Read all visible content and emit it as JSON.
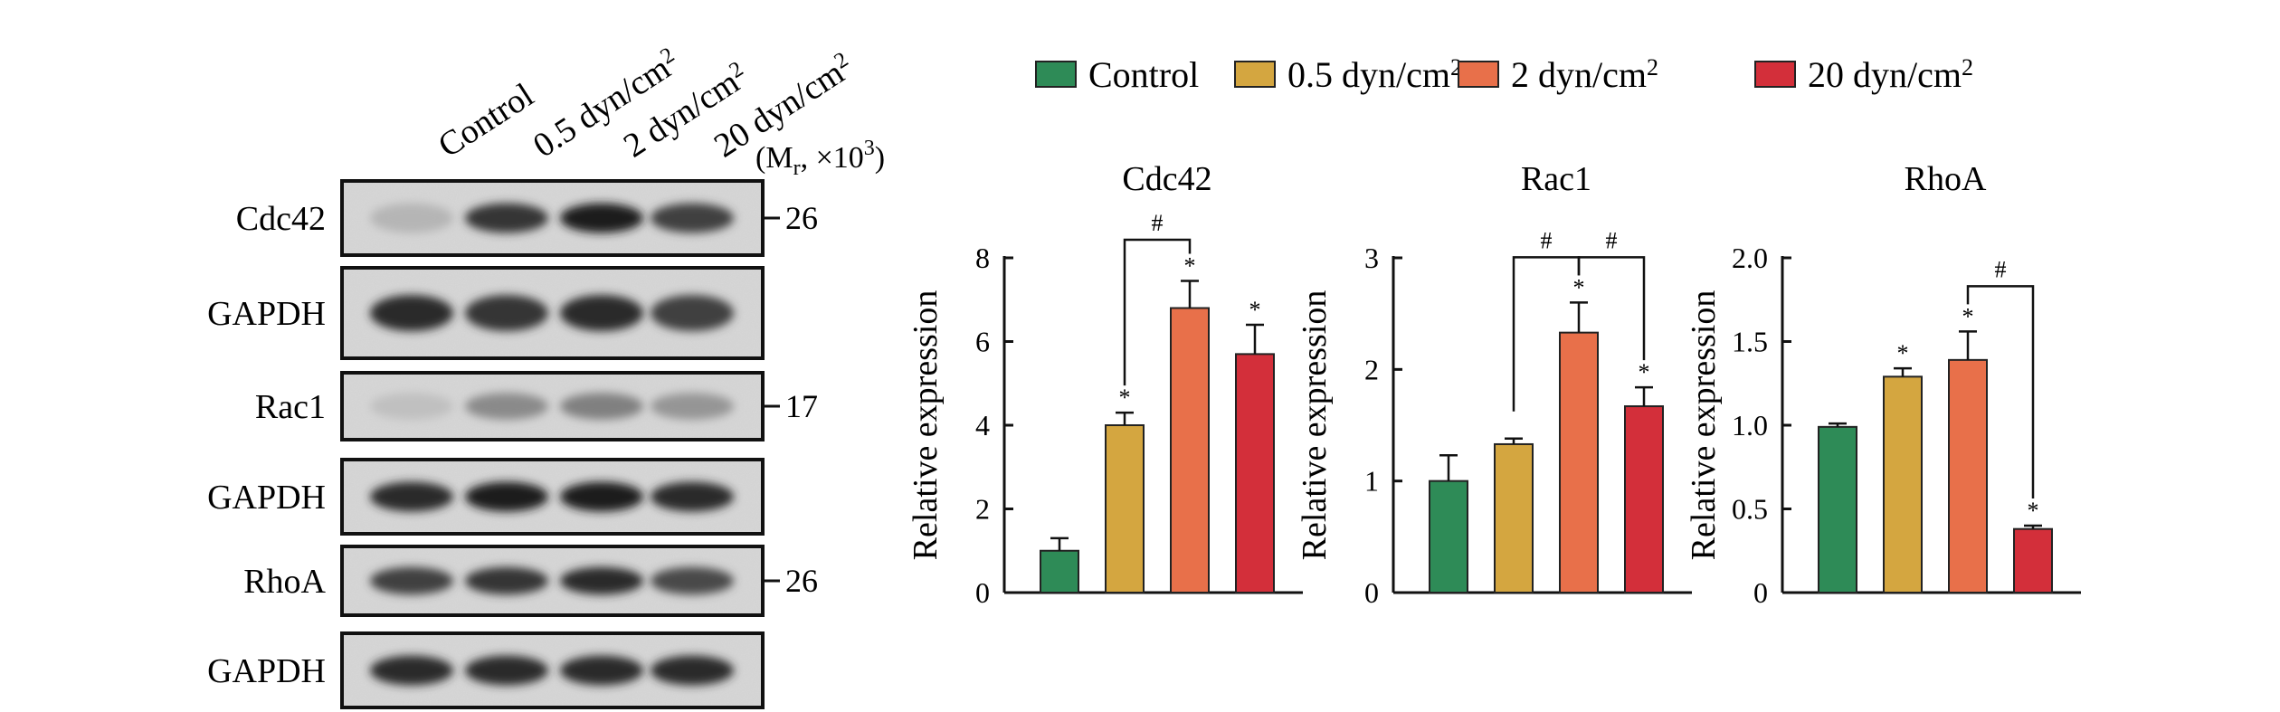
{
  "legend": [
    {
      "label": "Control",
      "color": "#2e8b57"
    },
    {
      "label": "0.5 dyn/cm²",
      "color": "#d4a640"
    },
    {
      "label": "2 dyn/cm²",
      "color": "#e8704a"
    },
    {
      "label": "20 dyn/cm²",
      "color": "#d32f3a"
    }
  ],
  "blot": {
    "lanes": [
      "Control",
      "0.5 dyn/cm²",
      "2 dyn/cm²",
      "20 dyn/cm²"
    ],
    "mr_prefix": "(M",
    "mr_sub": "r",
    "mr_suffix": ", ×10",
    "mr_exp": "3",
    "mr_close": ")",
    "rows": [
      {
        "label": "Cdc42",
        "mw": "26",
        "intensity": [
          0.25,
          0.85,
          0.95,
          0.8
        ]
      },
      {
        "label": "GAPDH",
        "mw": "",
        "intensity": [
          0.9,
          0.85,
          0.9,
          0.8
        ]
      },
      {
        "label": "Rac1",
        "mw": "17",
        "intensity": [
          0.2,
          0.45,
          0.5,
          0.4
        ]
      },
      {
        "label": "GAPDH",
        "mw": "",
        "intensity": [
          0.9,
          0.95,
          0.95,
          0.9
        ]
      },
      {
        "label": "RhoA",
        "mw": "26",
        "intensity": [
          0.8,
          0.85,
          0.9,
          0.75
        ]
      },
      {
        "label": "GAPDH",
        "mw": "",
        "intensity": [
          0.9,
          0.9,
          0.9,
          0.9
        ]
      }
    ]
  },
  "chart_data": [
    {
      "type": "bar",
      "title": "Cdc42",
      "ylabel": "Relative expression",
      "categories": [
        "Control",
        "0.5 dyn/cm²",
        "2 dyn/cm²",
        "20 dyn/cm²"
      ],
      "values": [
        1.0,
        4.0,
        6.8,
        5.7
      ],
      "errors": [
        0.3,
        0.3,
        0.65,
        0.7
      ],
      "ylim": [
        0,
        8
      ],
      "yticks": [
        "0",
        "2",
        "4",
        "6",
        "8"
      ],
      "stars": [
        "",
        "*",
        "*",
        "*"
      ],
      "brackets": [
        {
          "from": 1,
          "to": 2,
          "label": "#"
        }
      ]
    },
    {
      "type": "bar",
      "title": "Rac1",
      "ylabel": "Relative expression",
      "categories": [
        "Control",
        "0.5 dyn/cm²",
        "2 dyn/cm²",
        "20 dyn/cm²"
      ],
      "values": [
        1.0,
        1.33,
        2.33,
        1.67
      ],
      "errors": [
        0.23,
        0.05,
        0.27,
        0.17
      ],
      "ylim": [
        0,
        3
      ],
      "yticks": [
        "0",
        "1",
        "2",
        "3"
      ],
      "stars": [
        "",
        "",
        "*",
        "*"
      ],
      "brackets": [
        {
          "from": 1,
          "to": 2,
          "label": "#"
        },
        {
          "from": 2,
          "to": 3,
          "label": "#"
        }
      ]
    },
    {
      "type": "bar",
      "title": "RhoA",
      "ylabel": "Relative expression",
      "categories": [
        "Control",
        "0.5 dyn/cm²",
        "2 dyn/cm²",
        "20 dyn/cm²"
      ],
      "values": [
        0.99,
        1.29,
        1.39,
        0.38
      ],
      "errors": [
        0.02,
        0.05,
        0.17,
        0.02
      ],
      "ylim": [
        0,
        2.0
      ],
      "yticks": [
        "0",
        "0.5",
        "1.0",
        "1.5",
        "2.0"
      ],
      "stars": [
        "",
        "*",
        "*",
        "*"
      ],
      "brackets": [
        {
          "from": 2,
          "to": 3,
          "label": "#"
        }
      ]
    }
  ]
}
